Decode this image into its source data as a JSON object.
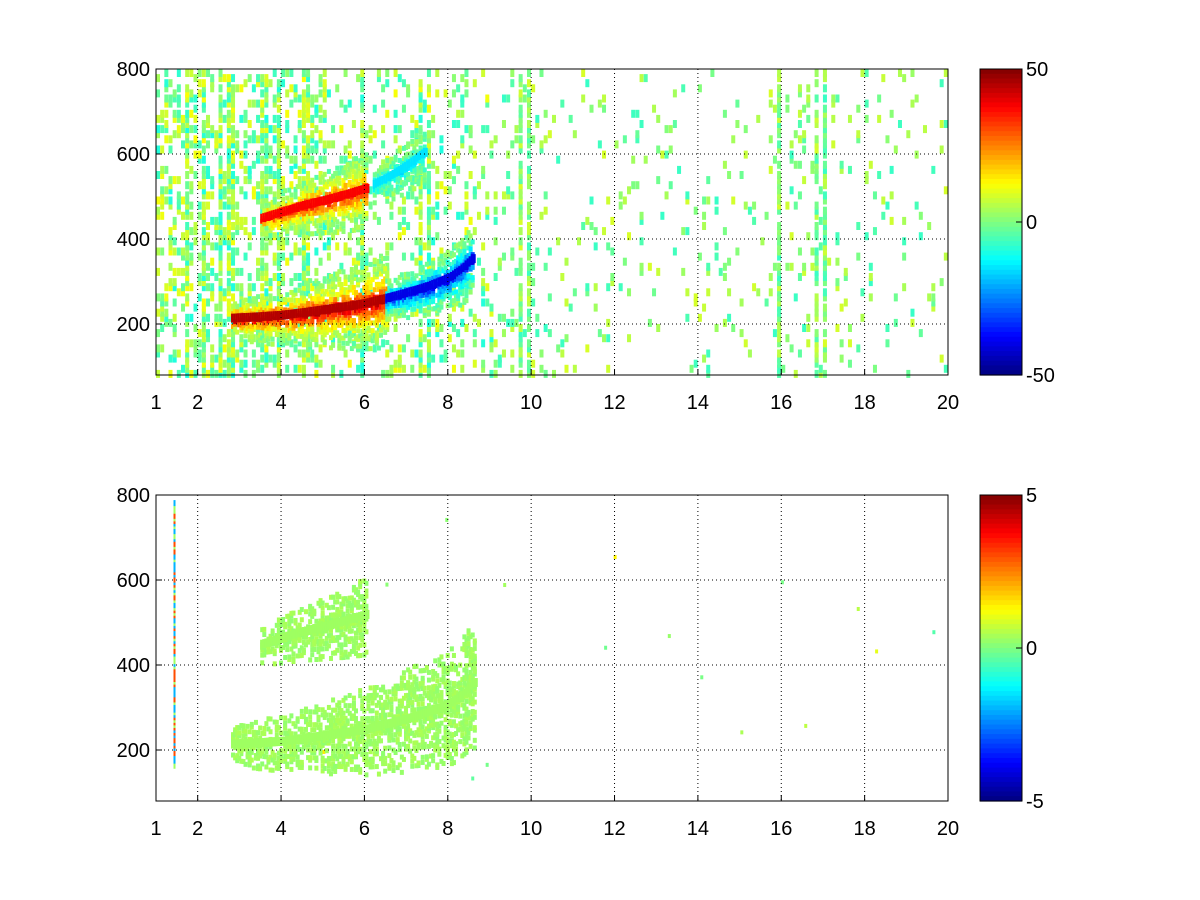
{
  "chart_data": [
    {
      "type": "heatmap",
      "title": "",
      "xlabel": "",
      "ylabel": "",
      "xlim": [
        1,
        20
      ],
      "ylim": [
        80,
        800
      ],
      "x_ticks": [
        "1",
        "2",
        "4",
        "6",
        "8",
        "10",
        "12",
        "14",
        "16",
        "18",
        "20"
      ],
      "x_tick_values": [
        1,
        2,
        4,
        6,
        8,
        10,
        12,
        14,
        16,
        18,
        20
      ],
      "y_ticks": [
        "200",
        "400",
        "600",
        "800"
      ],
      "y_tick_values": [
        200,
        400,
        600,
        800
      ],
      "grid": true,
      "colormap": "jet",
      "colorbar": {
        "min": -50,
        "max": 50,
        "ticks": [
          "50",
          "0",
          "-50"
        ],
        "tick_values": [
          50,
          0,
          -50
        ]
      },
      "features": [
        {
          "description": "upper ridge positive",
          "x": [
            3.5,
            4.0,
            4.5,
            5.0,
            5.5,
            6.0
          ],
          "y": [
            450,
            465,
            480,
            492,
            505,
            520
          ],
          "value": 38
        },
        {
          "description": "upper ridge negative",
          "x": [
            6.2,
            6.6,
            7.0,
            7.4
          ],
          "y": [
            530,
            550,
            575,
            605
          ],
          "value": -15
        },
        {
          "description": "lower ridge positive",
          "x": [
            2.8,
            3.4,
            4.0,
            4.5,
            5.0,
            5.5,
            6.0,
            6.5
          ],
          "y": [
            215,
            218,
            222,
            228,
            235,
            242,
            250,
            262
          ],
          "value": 45
        },
        {
          "description": "lower ridge negative",
          "x": [
            6.5,
            7.0,
            7.5,
            8.0,
            8.3,
            8.6
          ],
          "y": [
            262,
            275,
            290,
            310,
            330,
            360
          ],
          "value": -40
        }
      ]
    },
    {
      "type": "heatmap",
      "title": "",
      "xlabel": "",
      "ylabel": "",
      "xlim": [
        1,
        20
      ],
      "ylim": [
        80,
        800
      ],
      "x_ticks": [
        "1",
        "2",
        "4",
        "6",
        "8",
        "10",
        "12",
        "14",
        "16",
        "18",
        "20"
      ],
      "x_tick_values": [
        1,
        2,
        4,
        6,
        8,
        10,
        12,
        14,
        16,
        18,
        20
      ],
      "y_ticks": [
        "200",
        "400",
        "600",
        "800"
      ],
      "y_tick_values": [
        200,
        400,
        600,
        800
      ],
      "grid": true,
      "colormap": "jet",
      "colorbar": {
        "min": -5,
        "max": 5,
        "ticks": [
          "5",
          "0",
          "-5"
        ],
        "tick_values": [
          5,
          0,
          -5
        ]
      },
      "features": [
        {
          "description": "upper ridge",
          "x": [
            3.5,
            4.0,
            4.5,
            5.0,
            5.5,
            6.0
          ],
          "y": [
            450,
            465,
            480,
            492,
            505,
            520
          ],
          "value": 0.3
        },
        {
          "description": "lower ridge",
          "x": [
            2.8,
            3.4,
            4.0,
            4.5,
            5.0,
            5.5,
            6.0,
            6.5,
            7.0,
            7.5,
            8.0,
            8.3,
            8.6
          ],
          "y": [
            215,
            218,
            222,
            228,
            235,
            242,
            250,
            262,
            275,
            290,
            310,
            330,
            360
          ],
          "value": 0.3
        }
      ]
    }
  ]
}
